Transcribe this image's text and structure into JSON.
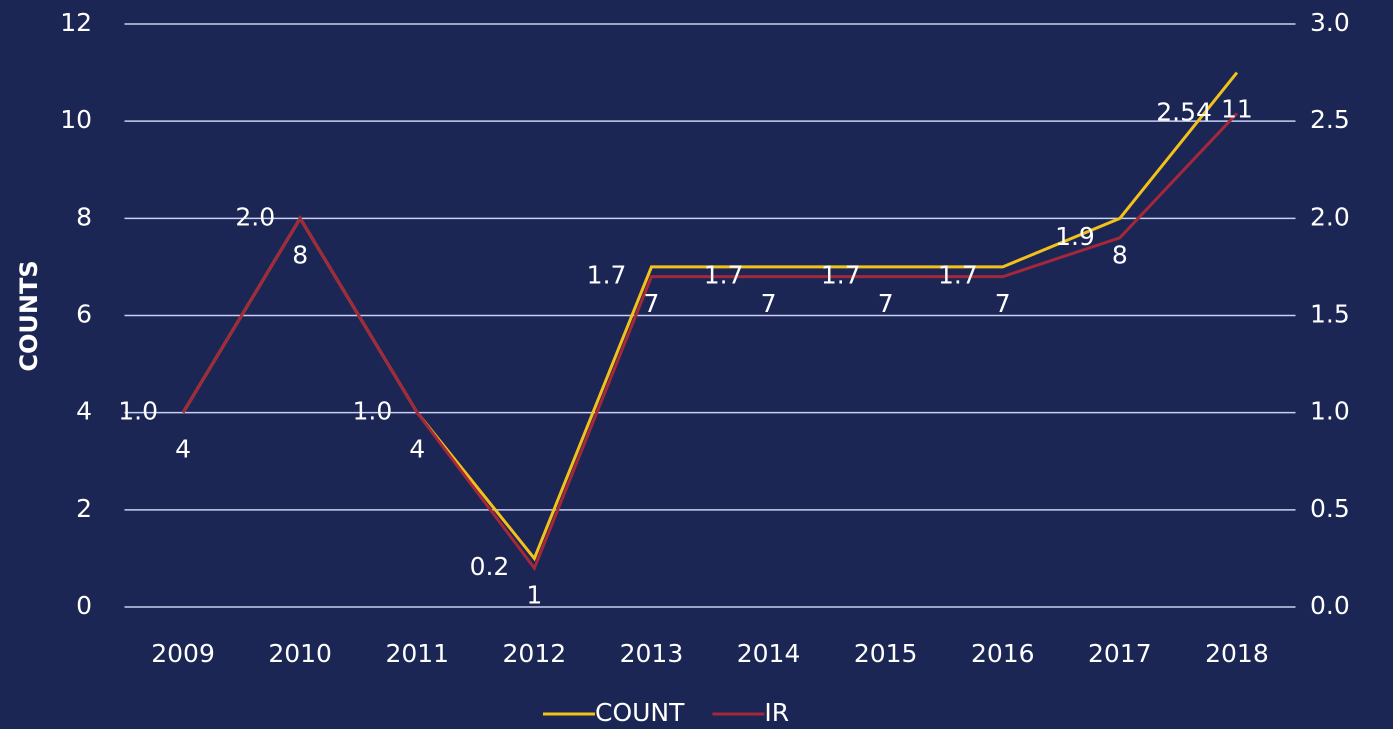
{
  "chart_data": {
    "type": "line",
    "y_axis_label": "COUNTS",
    "categories": [
      "2009",
      "2010",
      "2011",
      "2012",
      "2013",
      "2014",
      "2015",
      "2016",
      "2017",
      "2018"
    ],
    "series": [
      {
        "name": "COUNT",
        "color": "#f2c21b",
        "values": [
          4,
          8,
          4,
          1,
          7,
          7,
          7,
          7,
          8,
          11
        ]
      },
      {
        "name": "IR",
        "color": "#a3283a",
        "axis": "y2",
        "values": [
          1.0,
          2.0,
          1.0,
          0.2,
          1.7,
          1.7,
          1.7,
          1.7,
          1.9,
          2.54
        ],
        "value_labels": [
          "1.0",
          "2.0",
          "1.0",
          "0.2",
          "1.7",
          "1.7",
          "1.7",
          "1.7",
          "1.9",
          "2.54"
        ]
      }
    ],
    "ylim": [
      0,
      12
    ],
    "yticks": [
      0,
      2,
      4,
      6,
      8,
      10,
      12
    ],
    "y2lim": [
      0,
      3
    ],
    "y2ticks": [
      {
        "value": 0,
        "label": "0.0"
      },
      0.5,
      {
        "value": 1,
        "label": "1.0"
      },
      1.5,
      {
        "value": 2,
        "label": "2.0"
      },
      2.5,
      {
        "value": 3,
        "label": "3.0"
      }
    ],
    "grid": true,
    "legend": "bottom"
  }
}
